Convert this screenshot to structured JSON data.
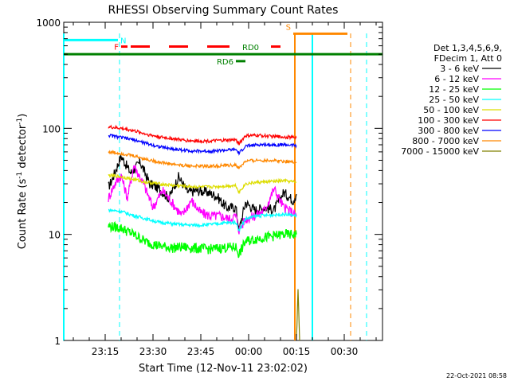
{
  "chart_data": {
    "type": "line",
    "title": "RHESSI Observing Summary Count Rates",
    "xlabel": "Start Time (12-Nov-11 23:02:02)",
    "ylabel_main": "Count Rate (s",
    "ylabel_sup": "-1",
    "ylabel_tail": " detector",
    "ylabel_end": ")",
    "y_scale": "log",
    "ylim": [
      1,
      1000
    ],
    "y_ticks": [
      1,
      10,
      100,
      1000
    ],
    "y_tick_labels": [
      "1",
      "10",
      "100",
      "1000"
    ],
    "x_range_minutes": [
      0,
      100
    ],
    "x_ticks_minutes": [
      13,
      28,
      43,
      58,
      73,
      88
    ],
    "x_tick_labels": [
      "23:15",
      "23:30",
      "23:45",
      "00:00",
      "00:15",
      "00:30"
    ],
    "legend_header": [
      "Det 1,3,4,5,6,9,",
      "FDecim 1, Att 0"
    ],
    "series": [
      {
        "name": "3 - 6 keV",
        "color": "#000000",
        "x": [
          14,
          15,
          18,
          21,
          24,
          27,
          30,
          33,
          36,
          39,
          42,
          45,
          48,
          51,
          54,
          55,
          57,
          60,
          63,
          66,
          69,
          72,
          73
        ],
        "y": [
          28,
          32,
          55,
          38,
          48,
          30,
          27,
          22,
          35,
          25,
          26,
          25,
          23,
          18,
          18,
          11,
          20,
          17,
          18,
          17,
          25,
          21,
          24
        ]
      },
      {
        "name": "6 - 12 keV",
        "color": "#ff00ff",
        "x": [
          14,
          16,
          18,
          20,
          22,
          25,
          28,
          31,
          34,
          37,
          40,
          43,
          46,
          49,
          52,
          54,
          55,
          57,
          60,
          63,
          66,
          69,
          72,
          73
        ],
        "y": [
          22,
          30,
          36,
          22,
          45,
          30,
          18,
          26,
          20,
          15,
          21,
          16,
          15,
          15,
          14,
          15,
          11,
          14,
          15,
          17,
          27,
          18,
          16,
          15
        ]
      },
      {
        "name": "12 - 25 keV",
        "color": "#00ff00",
        "x": [
          14,
          18,
          22,
          26,
          30,
          34,
          38,
          42,
          46,
          50,
          54,
          55,
          57,
          61,
          65,
          69,
          73
        ],
        "y": [
          12,
          11.5,
          10,
          8.5,
          7.8,
          7.5,
          7.6,
          7.4,
          7.3,
          7.5,
          7.6,
          6.5,
          8.6,
          9.2,
          9.6,
          10,
          10
        ]
      },
      {
        "name": "25 - 50 keV",
        "color": "#00ffff",
        "x": [
          14,
          18,
          22,
          26,
          30,
          34,
          38,
          42,
          46,
          50,
          54,
          55,
          57,
          61,
          65,
          69,
          73
        ],
        "y": [
          17,
          16.5,
          15,
          14,
          13,
          12.6,
          12.3,
          12.2,
          12.4,
          12.8,
          13,
          11,
          14,
          15,
          15.2,
          15.5,
          15
        ]
      },
      {
        "name": "50 - 100 keV",
        "color": "#dddd00",
        "x": [
          14,
          18,
          22,
          26,
          30,
          34,
          38,
          42,
          46,
          50,
          54,
          55,
          57,
          61,
          65,
          69,
          73
        ],
        "y": [
          36,
          35,
          33,
          31,
          30,
          29,
          28.5,
          28,
          28,
          28.5,
          29,
          25,
          30,
          31,
          31.5,
          32,
          31
        ]
      },
      {
        "name": "100 - 300 keV",
        "color": "#ff0000",
        "x": [
          14,
          18,
          22,
          26,
          30,
          34,
          38,
          42,
          46,
          50,
          54,
          55,
          57,
          61,
          65,
          69,
          73
        ],
        "y": [
          103,
          100,
          95,
          88,
          83,
          80,
          77,
          76,
          76,
          77,
          78,
          72,
          85,
          86,
          84,
          83,
          82
        ]
      },
      {
        "name": "300 - 800 keV",
        "color": "#0000ff",
        "x": [
          14,
          18,
          22,
          26,
          30,
          34,
          38,
          42,
          46,
          50,
          54,
          55,
          57,
          61,
          65,
          69,
          73
        ],
        "y": [
          86,
          82,
          78,
          72,
          67,
          64,
          62,
          61,
          61,
          62,
          63,
          58,
          68,
          70,
          70,
          70,
          69
        ]
      },
      {
        "name": "800 - 7000 keV",
        "color": "#ff8800",
        "x": [
          14,
          18,
          22,
          26,
          30,
          34,
          38,
          42,
          46,
          50,
          54,
          55,
          57,
          61,
          65,
          69,
          73
        ],
        "y": [
          60,
          58,
          55,
          51,
          48,
          46,
          44.5,
          44,
          44,
          44.5,
          45,
          42,
          49,
          50,
          50,
          49,
          48
        ]
      },
      {
        "name": "7000 - 15000 keV",
        "color": "#808000",
        "x": [
          73,
          73.5,
          74
        ],
        "y": [
          1,
          3,
          1
        ]
      }
    ],
    "flags": [
      {
        "label": "N",
        "color": "#00ffff",
        "segments": [
          [
            0,
            17
          ]
        ],
        "y": 680
      },
      {
        "label": "S",
        "color": "#ff8800",
        "segments": [
          [
            72,
            89
          ]
        ],
        "y": 780
      },
      {
        "label": "F",
        "color": "#ff0000",
        "segments": [
          [
            18,
            20
          ],
          [
            21,
            27
          ],
          [
            33,
            39
          ],
          [
            45,
            52
          ],
          [
            65,
            68
          ]
        ],
        "y": 590
      },
      {
        "label": "RD0",
        "color": "#008000",
        "segments": [
          [
            0,
            100
          ]
        ],
        "y": 500
      },
      {
        "label": "RD6",
        "color": "#008000",
        "segments": [
          [
            54,
            57
          ]
        ],
        "y": 430
      }
    ],
    "vlines": [
      {
        "x": 0,
        "color": "#00ffff",
        "style": "solid"
      },
      {
        "x": 17.5,
        "color": "#00ffff",
        "style": "dashed"
      },
      {
        "x": 72.5,
        "color": "#ff8800",
        "style": "solid"
      },
      {
        "x": 78,
        "color": "#00ffff",
        "style": "solid"
      },
      {
        "x": 90,
        "color": "#ff8800",
        "style": "dashed"
      },
      {
        "x": 95,
        "color": "#00ffff",
        "style": "dashed"
      }
    ],
    "footer_date": "22-Oct-2021 08:58"
  }
}
